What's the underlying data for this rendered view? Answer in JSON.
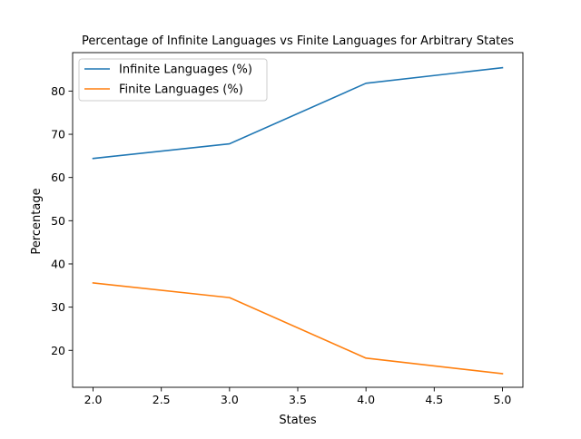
{
  "chart_data": {
    "type": "line",
    "title": "Percentage of Infinite Languages vs Finite Languages for Arbitrary States",
    "xlabel": "States",
    "ylabel": "Percentage",
    "x": [
      2,
      3,
      4,
      5
    ],
    "xlim": [
      1.85,
      5.15
    ],
    "ylim": [
      11.45,
      88.9
    ],
    "xticks": [
      2.0,
      2.5,
      3.0,
      3.5,
      4.0,
      4.5,
      5.0
    ],
    "xtick_labels": [
      "2.0",
      "2.5",
      "3.0",
      "3.5",
      "4.0",
      "4.5",
      "5.0"
    ],
    "yticks": [
      20,
      30,
      40,
      50,
      60,
      70,
      80
    ],
    "ytick_labels": [
      "20",
      "30",
      "40",
      "50",
      "60",
      "70",
      "80"
    ],
    "grid": false,
    "legend_position": "upper-left",
    "series": [
      {
        "name": "Infinite Languages (%)",
        "color": "#1f77b4",
        "values": [
          64.4,
          67.8,
          81.8,
          85.4
        ]
      },
      {
        "name": "Finite Languages (%)",
        "color": "#ff7f0e",
        "values": [
          35.6,
          32.2,
          18.2,
          14.6
        ]
      }
    ]
  }
}
